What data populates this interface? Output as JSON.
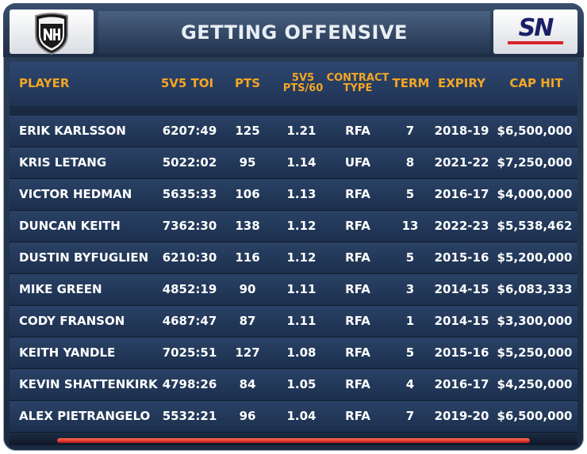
{
  "title": "GETTING OFFENSIVE",
  "logos": {
    "left": "nhl-shield-logo",
    "right": "sportsnet-logo"
  },
  "columns": {
    "player": "PLAYER",
    "toi": "5V5 TOI",
    "pts": "PTS",
    "pts60_line1": "5V5",
    "pts60_line2": "PTS/60",
    "type_line1": "CONTRACT",
    "type_line2": "TYPE",
    "term": "TERM",
    "expiry": "EXPIRY",
    "cap": "CAP HIT"
  },
  "rows": [
    {
      "player": "ERIK KARLSSON",
      "toi": "6207:49",
      "pts": "125",
      "pts60": "1.21",
      "type": "RFA",
      "term": "7",
      "expiry": "2018-19",
      "cap": "$6,500,000"
    },
    {
      "player": "KRIS LETANG",
      "toi": "5022:02",
      "pts": "95",
      "pts60": "1.14",
      "type": "UFA",
      "term": "8",
      "expiry": "2021-22",
      "cap": "$7,250,000"
    },
    {
      "player": "VICTOR HEDMAN",
      "toi": "5635:33",
      "pts": "106",
      "pts60": "1.13",
      "type": "RFA",
      "term": "5",
      "expiry": "2016-17",
      "cap": "$4,000,000"
    },
    {
      "player": "DUNCAN KEITH",
      "toi": "7362:30",
      "pts": "138",
      "pts60": "1.12",
      "type": "RFA",
      "term": "13",
      "expiry": "2022-23",
      "cap": "$5,538,462"
    },
    {
      "player": "DUSTIN BYFUGLIEN",
      "toi": "6210:30",
      "pts": "116",
      "pts60": "1.12",
      "type": "RFA",
      "term": "5",
      "expiry": "2015-16",
      "cap": "$5,200,000"
    },
    {
      "player": "MIKE GREEN",
      "toi": "4852:19",
      "pts": "90",
      "pts60": "1.11",
      "type": "RFA",
      "term": "3",
      "expiry": "2014-15",
      "cap": "$6,083,333"
    },
    {
      "player": "CODY FRANSON",
      "toi": "4687:47",
      "pts": "87",
      "pts60": "1.11",
      "type": "RFA",
      "term": "1",
      "expiry": "2014-15",
      "cap": "$3,300,000"
    },
    {
      "player": "KEITH YANDLE",
      "toi": "7025:51",
      "pts": "127",
      "pts60": "1.08",
      "type": "RFA",
      "term": "5",
      "expiry": "2015-16",
      "cap": "$5,250,000"
    },
    {
      "player": "KEVIN SHATTENKIRK",
      "toi": "4798:26",
      "pts": "84",
      "pts60": "1.05",
      "type": "RFA",
      "term": "4",
      "expiry": "2016-17",
      "cap": "$4,250,000"
    },
    {
      "player": "ALEX PIETRANGELO",
      "toi": "5532:21",
      "pts": "96",
      "pts60": "1.04",
      "type": "RFA",
      "term": "7",
      "expiry": "2019-20",
      "cap": "$6,500,000"
    }
  ],
  "colors": {
    "header_text": "#f5a623",
    "cell_text": "#ffffff",
    "accent_red": "#d8232a",
    "row_bg": "#24395b"
  }
}
